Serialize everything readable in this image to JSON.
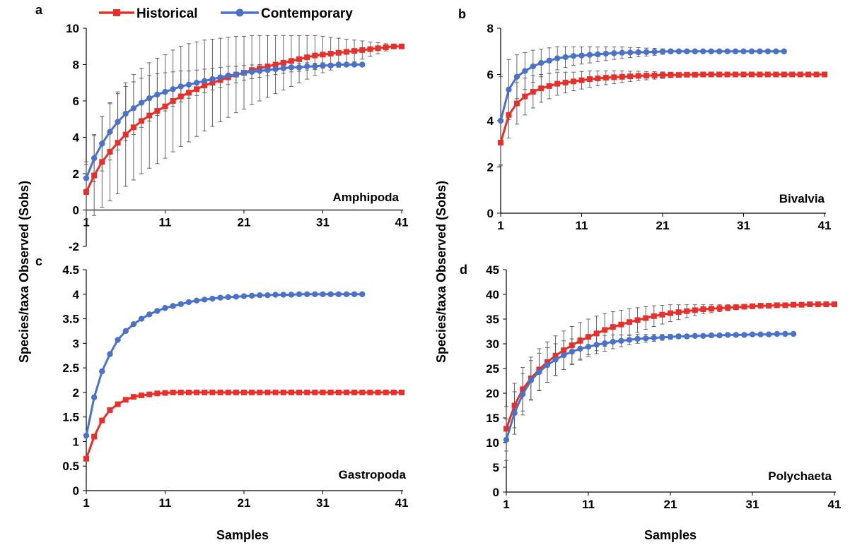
{
  "legend": {
    "historical_label": "Historical",
    "contemporary_label": "Contemporary",
    "historical_color": "#e8302a",
    "contemporary_color": "#4a72c9"
  },
  "axis_titles": {
    "y": "Species/taxa Observed (Sobs)",
    "x": "Samples"
  },
  "chart_data": [
    {
      "type": "line",
      "panel": "a",
      "taxon": "Amphipoda",
      "xlabel": "",
      "ylabel": "Species/taxa Observed (Sobs)",
      "xlim": [
        1,
        41
      ],
      "ylim": [
        -2,
        10
      ],
      "xticks": [
        1,
        11,
        21,
        31,
        41
      ],
      "yticks": [
        -2,
        0,
        2,
        4,
        6,
        8,
        10
      ],
      "error_bars": true,
      "series": [
        {
          "name": "Historical",
          "color": "#e8302a",
          "marker": "square",
          "x": [
            1,
            2,
            3,
            4,
            5,
            6,
            7,
            8,
            9,
            10,
            11,
            12,
            13,
            14,
            15,
            16,
            17,
            18,
            19,
            20,
            21,
            22,
            23,
            24,
            25,
            26,
            27,
            28,
            29,
            30,
            31,
            32,
            33,
            34,
            35,
            36,
            37,
            38,
            39,
            40,
            41
          ],
          "values": [
            1.0,
            1.9,
            2.65,
            3.2,
            3.7,
            4.15,
            4.55,
            4.9,
            5.2,
            5.45,
            5.7,
            6.0,
            6.25,
            6.45,
            6.65,
            6.85,
            7.0,
            7.15,
            7.3,
            7.45,
            7.55,
            7.7,
            7.8,
            7.9,
            8.0,
            8.1,
            8.2,
            8.3,
            8.4,
            8.5,
            8.55,
            8.6,
            8.65,
            8.7,
            8.75,
            8.8,
            8.85,
            8.9,
            8.95,
            9.0,
            9.0
          ],
          "error": [
            1.5,
            2.2,
            2.5,
            2.7,
            2.8,
            2.85,
            2.9,
            2.9,
            2.9,
            2.9,
            2.85,
            2.8,
            2.75,
            2.7,
            2.6,
            2.5,
            2.4,
            2.3,
            2.2,
            2.1,
            2.0,
            1.9,
            1.8,
            1.7,
            1.6,
            1.5,
            1.4,
            1.3,
            1.2,
            1.1,
            1.0,
            0.9,
            0.8,
            0.7,
            0.6,
            0.5,
            0.4,
            0.3,
            0.2,
            0.1,
            0.0
          ]
        },
        {
          "name": "Contemporary",
          "color": "#4a72c9",
          "marker": "circle",
          "x": [
            1,
            2,
            3,
            4,
            5,
            6,
            7,
            8,
            9,
            10,
            11,
            12,
            13,
            14,
            15,
            16,
            17,
            18,
            19,
            20,
            21,
            22,
            23,
            24,
            25,
            26,
            27,
            28,
            29,
            30,
            31,
            32,
            33,
            34,
            35,
            36
          ],
          "values": [
            1.75,
            2.85,
            3.65,
            4.3,
            4.85,
            5.3,
            5.6,
            5.9,
            6.15,
            6.35,
            6.5,
            6.65,
            6.8,
            6.9,
            7.0,
            7.1,
            7.2,
            7.3,
            7.4,
            7.45,
            7.55,
            7.6,
            7.65,
            7.7,
            7.75,
            7.8,
            7.85,
            7.85,
            7.9,
            7.9,
            7.95,
            7.95,
            8.0,
            8.0,
            8.0,
            8.0
          ],
          "error": [
            0.9,
            1.3,
            1.5,
            1.55,
            1.55,
            1.5,
            1.45,
            1.35,
            1.25,
            1.15,
            1.05,
            0.95,
            0.85,
            0.75,
            0.7,
            0.65,
            0.6,
            0.55,
            0.5,
            0.45,
            0.4,
            0.38,
            0.35,
            0.32,
            0.3,
            0.28,
            0.25,
            0.22,
            0.2,
            0.18,
            0.15,
            0.12,
            0.1,
            0.08,
            0.05,
            0.0
          ]
        }
      ]
    },
    {
      "type": "line",
      "panel": "b",
      "taxon": "Bivalvia",
      "xlabel": "",
      "ylabel": "",
      "xlim": [
        1,
        41
      ],
      "ylim": [
        0,
        8
      ],
      "xticks": [
        1,
        11,
        21,
        31,
        41
      ],
      "yticks": [
        0,
        2,
        4,
        6,
        8
      ],
      "error_bars": true,
      "series": [
        {
          "name": "Historical",
          "color": "#e8302a",
          "marker": "square",
          "x": [
            1,
            2,
            3,
            4,
            5,
            6,
            7,
            8,
            9,
            10,
            11,
            12,
            13,
            14,
            15,
            16,
            17,
            18,
            19,
            20,
            21,
            22,
            23,
            24,
            25,
            26,
            27,
            28,
            29,
            30,
            31,
            32,
            33,
            34,
            35,
            36,
            37,
            38,
            39,
            40,
            41
          ],
          "values": [
            3.05,
            4.25,
            4.75,
            5.05,
            5.25,
            5.4,
            5.5,
            5.6,
            5.65,
            5.7,
            5.75,
            5.8,
            5.83,
            5.86,
            5.88,
            5.9,
            5.92,
            5.94,
            5.95,
            5.96,
            5.97,
            5.98,
            5.98,
            5.99,
            5.99,
            6.0,
            6.0,
            6.0,
            6.0,
            6.0,
            6.0,
            6.0,
            6.0,
            6.0,
            6.0,
            6.0,
            6.0,
            6.0,
            6.0,
            6.0,
            6.0
          ],
          "error": [
            1.0,
            1.0,
            0.9,
            0.8,
            0.7,
            0.6,
            0.55,
            0.5,
            0.45,
            0.4,
            0.38,
            0.35,
            0.32,
            0.3,
            0.28,
            0.25,
            0.22,
            0.2,
            0.18,
            0.16,
            0.14,
            0.12,
            0.1,
            0.08,
            0.06,
            0.05,
            0.04,
            0.03,
            0.02,
            0.01,
            0.0,
            0.0,
            0.0,
            0.0,
            0.0,
            0.0,
            0.0,
            0.0,
            0.0,
            0.0,
            0.0
          ]
        },
        {
          "name": "Contemporary",
          "color": "#4a72c9",
          "marker": "circle",
          "x": [
            1,
            2,
            3,
            4,
            5,
            6,
            7,
            8,
            9,
            10,
            11,
            12,
            13,
            14,
            15,
            16,
            17,
            18,
            19,
            20,
            21,
            22,
            23,
            24,
            25,
            26,
            27,
            28,
            29,
            30,
            31,
            32,
            33,
            34,
            35,
            36
          ],
          "values": [
            4.0,
            5.35,
            5.9,
            6.15,
            6.35,
            6.5,
            6.6,
            6.7,
            6.75,
            6.8,
            6.82,
            6.85,
            6.87,
            6.9,
            6.92,
            6.94,
            6.95,
            6.96,
            6.97,
            6.98,
            6.99,
            7.0,
            7.0,
            7.0,
            7.0,
            7.0,
            7.0,
            7.0,
            7.0,
            7.0,
            7.0,
            7.0,
            7.0,
            7.0,
            7.0,
            7.0
          ],
          "error": [
            1.9,
            1.3,
            0.95,
            0.8,
            0.7,
            0.6,
            0.55,
            0.5,
            0.45,
            0.4,
            0.37,
            0.35,
            0.32,
            0.3,
            0.27,
            0.25,
            0.22,
            0.2,
            0.17,
            0.15,
            0.12,
            0.1,
            0.08,
            0.06,
            0.05,
            0.04,
            0.03,
            0.02,
            0.01,
            0.0,
            0.0,
            0.0,
            0.0,
            0.0,
            0.0,
            0.0
          ]
        }
      ]
    },
    {
      "type": "line",
      "panel": "c",
      "taxon": "Gastropoda",
      "xlabel": "",
      "ylabel": "",
      "xlim": [
        1,
        41
      ],
      "ylim": [
        0,
        4.5
      ],
      "xticks": [
        1,
        11,
        21,
        31,
        41
      ],
      "yticks": [
        0,
        0.5,
        1,
        1.5,
        2,
        2.5,
        3,
        3.5,
        4,
        4.5
      ],
      "error_bars": false,
      "series": [
        {
          "name": "Historical",
          "color": "#e8302a",
          "marker": "square",
          "x": [
            1,
            2,
            3,
            4,
            5,
            6,
            7,
            8,
            9,
            10,
            11,
            12,
            13,
            14,
            15,
            16,
            17,
            18,
            19,
            20,
            21,
            22,
            23,
            24,
            25,
            26,
            27,
            28,
            29,
            30,
            31,
            32,
            33,
            34,
            35,
            36,
            37,
            38,
            39,
            40,
            41
          ],
          "values": [
            0.65,
            1.1,
            1.43,
            1.64,
            1.76,
            1.85,
            1.91,
            1.94,
            1.96,
            1.98,
            1.99,
            2.0,
            2.0,
            2.0,
            2.0,
            2.0,
            2.0,
            2.0,
            2.0,
            2.0,
            2.0,
            2.0,
            2.0,
            2.0,
            2.0,
            2.0,
            2.0,
            2.0,
            2.0,
            2.0,
            2.0,
            2.0,
            2.0,
            2.0,
            2.0,
            2.0,
            2.0,
            2.0,
            2.0,
            2.0,
            2.0
          ]
        },
        {
          "name": "Contemporary",
          "color": "#4a72c9",
          "marker": "circle",
          "x": [
            1,
            2,
            3,
            4,
            5,
            6,
            7,
            8,
            9,
            10,
            11,
            12,
            13,
            14,
            15,
            16,
            17,
            18,
            19,
            20,
            21,
            22,
            23,
            24,
            25,
            26,
            27,
            28,
            29,
            30,
            31,
            32,
            33,
            34,
            35,
            36
          ],
          "values": [
            1.12,
            1.9,
            2.43,
            2.78,
            3.07,
            3.25,
            3.39,
            3.5,
            3.59,
            3.66,
            3.72,
            3.76,
            3.8,
            3.84,
            3.87,
            3.89,
            3.91,
            3.93,
            3.94,
            3.95,
            3.96,
            3.97,
            3.98,
            3.98,
            3.99,
            3.99,
            3.99,
            4.0,
            4.0,
            4.0,
            4.0,
            4.0,
            4.0,
            4.0,
            4.0,
            4.0
          ]
        }
      ]
    },
    {
      "type": "line",
      "panel": "d",
      "taxon": "Polychaeta",
      "xlabel": "",
      "ylabel": "",
      "xlim": [
        1,
        41
      ],
      "ylim": [
        0,
        45
      ],
      "xticks": [
        1,
        11,
        21,
        31,
        41
      ],
      "yticks": [
        0,
        5,
        10,
        15,
        20,
        25,
        30,
        35,
        40,
        45
      ],
      "error_bars": true,
      "series": [
        {
          "name": "Historical",
          "color": "#e8302a",
          "marker": "square",
          "x": [
            1,
            2,
            3,
            4,
            5,
            6,
            7,
            8,
            9,
            10,
            11,
            12,
            13,
            14,
            15,
            16,
            17,
            18,
            19,
            20,
            21,
            22,
            23,
            24,
            25,
            26,
            27,
            28,
            29,
            30,
            31,
            32,
            33,
            34,
            35,
            36,
            37,
            38,
            39,
            40,
            41
          ],
          "values": [
            12.8,
            17.5,
            20.8,
            23.0,
            24.8,
            26.3,
            27.6,
            28.7,
            29.7,
            30.6,
            31.4,
            32.1,
            32.8,
            33.4,
            33.9,
            34.4,
            34.8,
            35.2,
            35.6,
            35.9,
            36.2,
            36.4,
            36.6,
            36.8,
            37.0,
            37.1,
            37.2,
            37.3,
            37.4,
            37.5,
            37.6,
            37.7,
            37.7,
            37.8,
            37.8,
            37.9,
            37.9,
            38.0,
            38.0,
            38.0,
            38.0
          ],
          "error": [
            4.5,
            4.5,
            4.4,
            4.3,
            4.2,
            4.1,
            4.0,
            3.9,
            3.8,
            3.7,
            3.6,
            3.5,
            3.3,
            3.1,
            2.9,
            2.7,
            2.5,
            2.3,
            2.1,
            1.9,
            1.7,
            1.5,
            1.3,
            1.1,
            0.9,
            0.8,
            0.7,
            0.6,
            0.5,
            0.4,
            0.3,
            0.2,
            0.1,
            0.0,
            0.0,
            0.0,
            0.0,
            0.0,
            0.0,
            0.0,
            0.0
          ]
        },
        {
          "name": "Contemporary",
          "color": "#4a72c9",
          "marker": "circle",
          "x": [
            1,
            2,
            3,
            4,
            5,
            6,
            7,
            8,
            9,
            10,
            11,
            12,
            13,
            14,
            15,
            16,
            17,
            18,
            19,
            20,
            21,
            22,
            23,
            24,
            25,
            26,
            27,
            28,
            29,
            30,
            31,
            32,
            33,
            34,
            35,
            36
          ],
          "values": [
            10.6,
            16.0,
            19.8,
            22.6,
            24.3,
            25.7,
            26.8,
            27.7,
            28.4,
            29.0,
            29.4,
            29.8,
            30.1,
            30.4,
            30.6,
            30.8,
            31.0,
            31.1,
            31.2,
            31.3,
            31.4,
            31.5,
            31.5,
            31.6,
            31.6,
            31.7,
            31.7,
            31.8,
            31.8,
            31.8,
            31.9,
            31.9,
            31.9,
            32.0,
            32.0,
            32.0
          ],
          "error": [
            4.2,
            4.3,
            4.2,
            4.0,
            3.8,
            3.5,
            3.2,
            2.9,
            2.6,
            2.3,
            2.0,
            1.8,
            1.6,
            1.4,
            1.2,
            1.0,
            0.9,
            0.8,
            0.7,
            0.6,
            0.5,
            0.45,
            0.4,
            0.35,
            0.3,
            0.25,
            0.2,
            0.15,
            0.1,
            0.08,
            0.06,
            0.04,
            0.02,
            0.0,
            0.0,
            0.0
          ]
        }
      ]
    }
  ]
}
